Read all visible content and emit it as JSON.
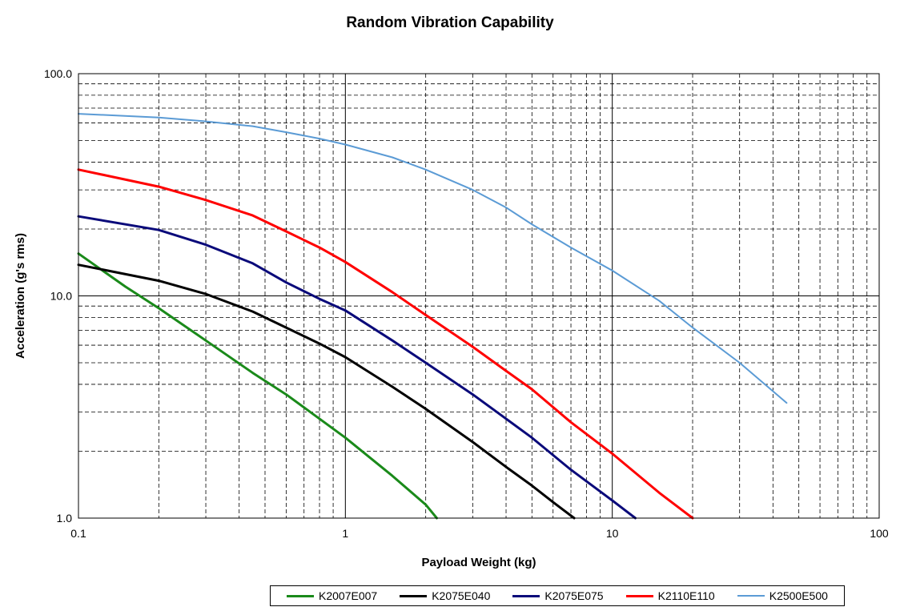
{
  "chart_data": {
    "type": "line",
    "title": "Random Vibration Capability",
    "xlabel": "Payload Weight (kg)",
    "ylabel": "Acceleration (g's rms)",
    "x_scale": "log",
    "y_scale": "log",
    "xlim": [
      0.1,
      100
    ],
    "ylim": [
      1.0,
      100.0
    ],
    "x_ticks": [
      "0.1",
      "1",
      "10",
      "100"
    ],
    "y_ticks": [
      "1.0",
      "10.0",
      "100.0"
    ],
    "grid": true,
    "legend_position": "bottom",
    "series": [
      {
        "name": "K2007E007",
        "color": "#1a8a1a",
        "points": [
          [
            0.1,
            15.5
          ],
          [
            0.15,
            11.0
          ],
          [
            0.2,
            8.8
          ],
          [
            0.3,
            6.3
          ],
          [
            0.45,
            4.5
          ],
          [
            0.6,
            3.6
          ],
          [
            0.8,
            2.8
          ],
          [
            1.0,
            2.3
          ],
          [
            1.5,
            1.55
          ],
          [
            2.0,
            1.15
          ],
          [
            2.2,
            1.0
          ]
        ]
      },
      {
        "name": "K2075E040",
        "color": "#000000",
        "points": [
          [
            0.1,
            13.8
          ],
          [
            0.2,
            11.7
          ],
          [
            0.3,
            10.2
          ],
          [
            0.45,
            8.5
          ],
          [
            0.6,
            7.2
          ],
          [
            0.8,
            6.1
          ],
          [
            1.0,
            5.3
          ],
          [
            1.5,
            3.9
          ],
          [
            2.0,
            3.1
          ],
          [
            3.0,
            2.2
          ],
          [
            4.0,
            1.7
          ],
          [
            5.0,
            1.4
          ],
          [
            6.0,
            1.18
          ],
          [
            7.2,
            1.0
          ]
        ]
      },
      {
        "name": "K2075E075",
        "color": "#0a0a7a",
        "points": [
          [
            0.1,
            22.8
          ],
          [
            0.2,
            19.8
          ],
          [
            0.3,
            17.0
          ],
          [
            0.45,
            14.0
          ],
          [
            0.6,
            11.5
          ],
          [
            0.8,
            9.7
          ],
          [
            1.0,
            8.6
          ],
          [
            1.5,
            6.3
          ],
          [
            2.0,
            5.0
          ],
          [
            3.0,
            3.6
          ],
          [
            4.0,
            2.8
          ],
          [
            5.0,
            2.3
          ],
          [
            7.0,
            1.65
          ],
          [
            10.0,
            1.2
          ],
          [
            12.2,
            1.0
          ]
        ]
      },
      {
        "name": "K2110E110",
        "color": "#ff0000",
        "points": [
          [
            0.1,
            37.0
          ],
          [
            0.2,
            31.0
          ],
          [
            0.3,
            27.0
          ],
          [
            0.45,
            23.0
          ],
          [
            0.6,
            19.5
          ],
          [
            0.8,
            16.5
          ],
          [
            1.0,
            14.2
          ],
          [
            1.5,
            10.4
          ],
          [
            2.0,
            8.2
          ],
          [
            3.0,
            5.9
          ],
          [
            4.0,
            4.6
          ],
          [
            5.0,
            3.8
          ],
          [
            7.0,
            2.7
          ],
          [
            10.0,
            1.95
          ],
          [
            15.0,
            1.3
          ],
          [
            20.0,
            1.0
          ]
        ]
      },
      {
        "name": "K2500E500",
        "color": "#5b9bd5",
        "points": [
          [
            0.1,
            66.0
          ],
          [
            0.2,
            63.5
          ],
          [
            0.3,
            61.0
          ],
          [
            0.45,
            58.0
          ],
          [
            0.6,
            54.5
          ],
          [
            0.8,
            51.0
          ],
          [
            1.0,
            48.0
          ],
          [
            1.5,
            42.0
          ],
          [
            2.0,
            37.0
          ],
          [
            3.0,
            30.0
          ],
          [
            4.0,
            25.0
          ],
          [
            5.0,
            21.0
          ],
          [
            7.0,
            16.5
          ],
          [
            10.0,
            13.0
          ],
          [
            15.0,
            9.5
          ],
          [
            20.0,
            7.2
          ],
          [
            30.0,
            5.0
          ],
          [
            45.0,
            3.3
          ]
        ]
      }
    ]
  }
}
